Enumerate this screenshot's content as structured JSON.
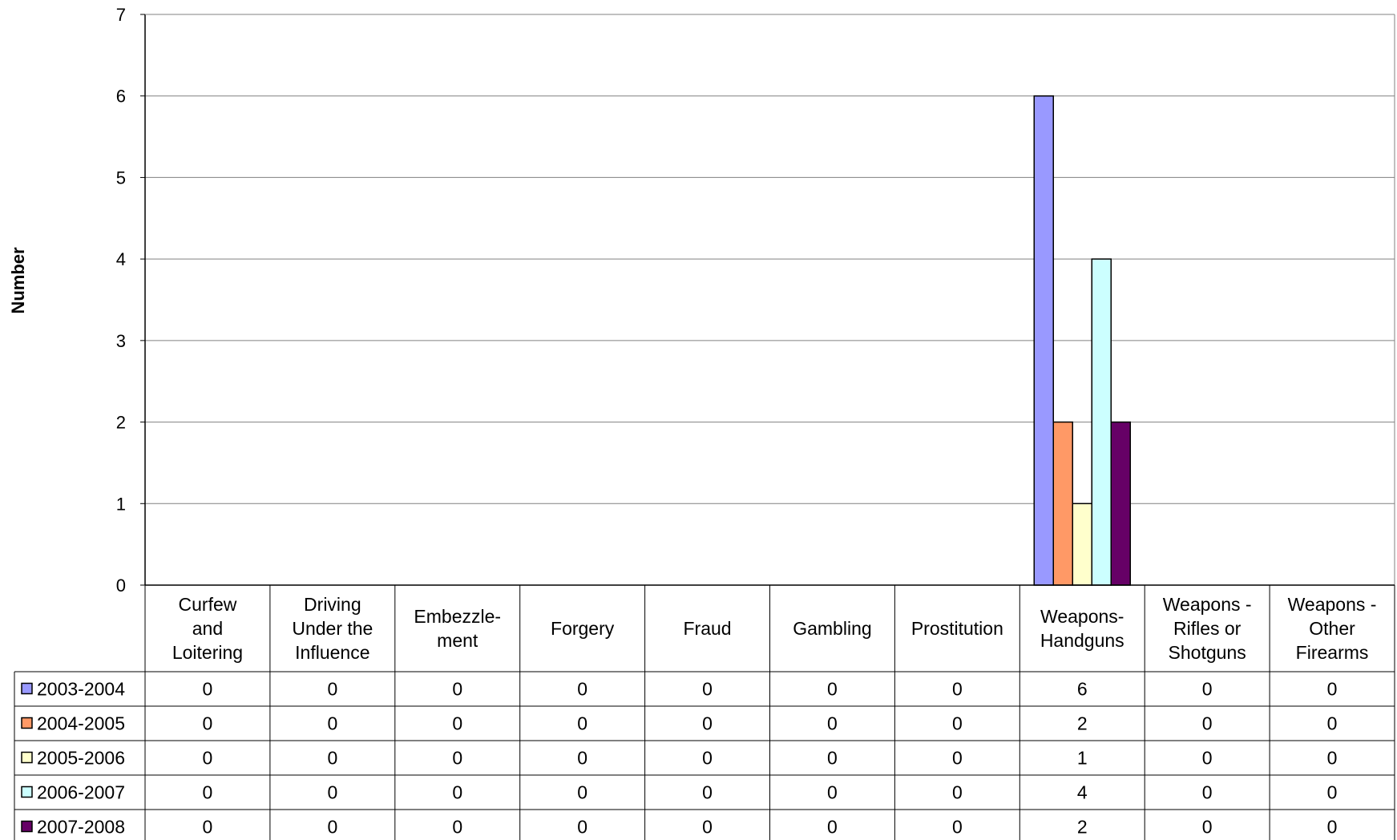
{
  "chart_data": {
    "type": "bar",
    "ylabel": "Number",
    "ylim": [
      0,
      7
    ],
    "yticks": [
      0,
      1,
      2,
      3,
      4,
      5,
      6,
      7
    ],
    "grid": true,
    "legend_placement": "left, within data table",
    "categories": [
      [
        "Curfew",
        "and",
        "Loitering"
      ],
      [
        "Driving",
        "Under the",
        "Influence"
      ],
      [
        "Embezzle-",
        "ment"
      ],
      [
        "Forgery"
      ],
      [
        "Fraud"
      ],
      [
        "Gambling"
      ],
      [
        "Prostitution"
      ],
      [
        "Weapons-",
        "Handguns"
      ],
      [
        "Weapons -",
        "Rifles or",
        "Shotguns"
      ],
      [
        "Weapons -",
        "Other",
        "Firearms"
      ]
    ],
    "series": [
      {
        "name": "2003-2004",
        "color": "#9999ff",
        "values": [
          0,
          0,
          0,
          0,
          0,
          0,
          0,
          6,
          0,
          0
        ]
      },
      {
        "name": "2004-2005",
        "color": "#ff9966",
        "values": [
          0,
          0,
          0,
          0,
          0,
          0,
          0,
          2,
          0,
          0
        ]
      },
      {
        "name": "2005-2006",
        "color": "#ffffcc",
        "values": [
          0,
          0,
          0,
          0,
          0,
          0,
          0,
          1,
          0,
          0
        ]
      },
      {
        "name": "2006-2007",
        "color": "#ccffff",
        "values": [
          0,
          0,
          0,
          0,
          0,
          0,
          0,
          4,
          0,
          0
        ]
      },
      {
        "name": "2007-2008",
        "color": "#660066",
        "values": [
          0,
          0,
          0,
          0,
          0,
          0,
          0,
          2,
          0,
          0
        ]
      }
    ]
  }
}
